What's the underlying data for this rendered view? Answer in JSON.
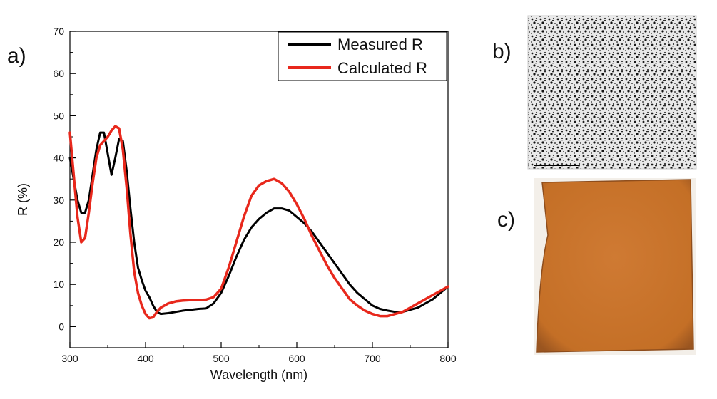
{
  "panels": {
    "a": "a)",
    "b": "b)",
    "c": "c)"
  },
  "colors": {
    "measured": "#000000",
    "calculated": "#e8281c",
    "sample_orange": "#c8732a"
  },
  "chart_data": {
    "type": "line",
    "title": "",
    "xlabel": "Wavelength (nm)",
    "ylabel": "R (%)",
    "xlim": [
      300,
      800
    ],
    "ylim": [
      -5,
      70
    ],
    "xticks": [
      300,
      400,
      500,
      600,
      700,
      800
    ],
    "yticks": [
      0,
      10,
      20,
      30,
      40,
      50,
      60,
      70
    ],
    "grid": false,
    "legend_position": "top-right",
    "series": [
      {
        "name": "Measured R",
        "color": "#000000",
        "x": [
          300,
          305,
          310,
          315,
          320,
          325,
          330,
          335,
          340,
          345,
          350,
          355,
          360,
          365,
          370,
          375,
          380,
          385,
          390,
          395,
          400,
          405,
          410,
          415,
          420,
          430,
          440,
          450,
          460,
          470,
          480,
          490,
          500,
          510,
          520,
          530,
          540,
          550,
          560,
          570,
          580,
          590,
          600,
          610,
          620,
          630,
          640,
          650,
          660,
          670,
          680,
          690,
          700,
          710,
          720,
          730,
          740,
          750,
          760,
          770,
          780,
          790,
          800
        ],
        "y": [
          40,
          35,
          30,
          27,
          27,
          30,
          36,
          42,
          46,
          46,
          41,
          36,
          40,
          44.5,
          44,
          37,
          28,
          20,
          14,
          11,
          8.5,
          7,
          5,
          3.5,
          3,
          3.2,
          3.5,
          3.8,
          4,
          4.2,
          4.3,
          5.5,
          8,
          12,
          16.5,
          20.5,
          23.5,
          25.5,
          27,
          28,
          28,
          27.5,
          26,
          24.5,
          22.5,
          20,
          17.5,
          15,
          12.5,
          10,
          8,
          6.5,
          5,
          4.2,
          3.8,
          3.5,
          3.5,
          4,
          4.5,
          5.5,
          6.5,
          8,
          9.5
        ]
      },
      {
        "name": "Calculated R",
        "color": "#e8281c",
        "x": [
          300,
          305,
          310,
          315,
          320,
          325,
          330,
          335,
          340,
          345,
          350,
          355,
          360,
          365,
          370,
          375,
          380,
          385,
          390,
          395,
          400,
          405,
          410,
          415,
          420,
          430,
          440,
          450,
          460,
          470,
          480,
          490,
          500,
          510,
          520,
          530,
          540,
          550,
          560,
          570,
          580,
          590,
          600,
          610,
          620,
          630,
          640,
          650,
          660,
          670,
          680,
          690,
          700,
          710,
          720,
          730,
          740,
          750,
          760,
          770,
          780,
          790,
          800
        ],
        "y": [
          46,
          36,
          26,
          20,
          21,
          27,
          34,
          40,
          43,
          44,
          45,
          46.5,
          47.5,
          47,
          42,
          33,
          22,
          13,
          8,
          5,
          3,
          2,
          2.2,
          3.5,
          4.5,
          5.5,
          6,
          6.2,
          6.3,
          6.3,
          6.4,
          7,
          9,
          14,
          20,
          26,
          31,
          33.5,
          34.5,
          35,
          34,
          32,
          29,
          25.5,
          21.5,
          18,
          14.5,
          11.5,
          9,
          6.5,
          5,
          3.8,
          3,
          2.5,
          2.5,
          3,
          3.5,
          4.5,
          5.5,
          6.5,
          7.5,
          8.5,
          9.5
        ]
      }
    ]
  }
}
